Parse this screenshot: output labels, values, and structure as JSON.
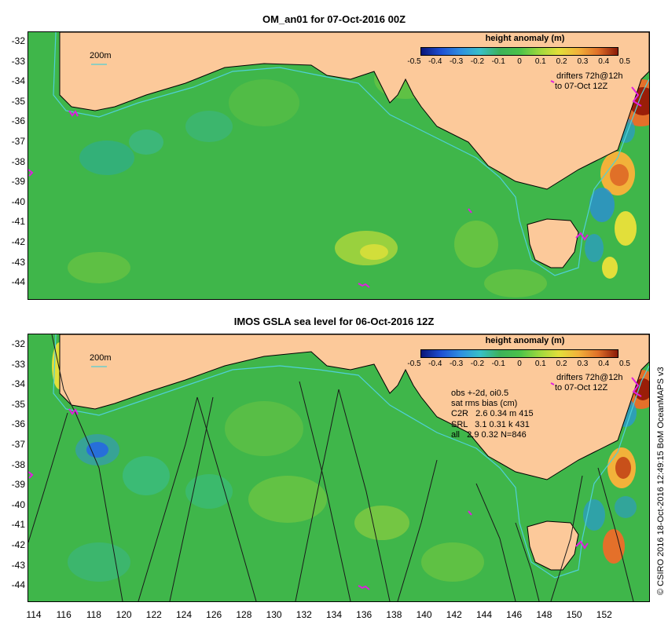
{
  "top_panel": {
    "title": "OM_an01 for 07-Oct-2016 00Z",
    "contour_label": "200m",
    "legend_title": "height anomaly (m)",
    "legend_ticks": [
      "-0.5",
      "-0.4",
      "-0.3",
      "-0.2",
      "-0.1",
      "0",
      "0.1",
      "0.2",
      "0.3",
      "0.4",
      "0.5"
    ],
    "drifters_line1": "drifters 72h@12h",
    "drifters_line2": "to 07-Oct 12Z"
  },
  "bottom_panel": {
    "title": "IMOS GSLA sea level  for 06-Oct-2016 12Z",
    "contour_label": "200m",
    "legend_title": "height anomaly (m)",
    "legend_ticks": [
      "-0.5",
      "-0.4",
      "-0.3",
      "-0.2",
      "-0.1",
      "0",
      "0.1",
      "0.2",
      "0.3",
      "0.4",
      "0.5"
    ],
    "drifters_line1": "drifters 72h@12h",
    "drifters_line2": "to 07-Oct 12Z",
    "stats": [
      "obs +-2d, oi0.5",
      "sat rms bias (cm)",
      "C2R   2.6 0.34 m 415",
      "SRL   3.1 0.31 k 431",
      "all   2.9 0.32 N=846"
    ]
  },
  "axes": {
    "y_labels": [
      "-32",
      "-33",
      "-34",
      "-35",
      "-36",
      "-37",
      "-38",
      "-39",
      "-40",
      "-41",
      "-42",
      "-43",
      "-44"
    ],
    "x_labels": [
      "114",
      "116",
      "118",
      "120",
      "122",
      "124",
      "126",
      "128",
      "130",
      "132",
      "134",
      "136",
      "138",
      "140",
      "142",
      "144",
      "146",
      "148",
      "150",
      "152"
    ]
  },
  "copyright": "© CSIRO 2016  18-Oct-2016 12:49:15 BoM OceanMAPS v3",
  "colors": {
    "land": "#fcc99a",
    "ocean_base": "#3fb64a",
    "coastline": "#000000",
    "isobath": "#4fd0d8",
    "drifter": "#e01ee0",
    "track": "#1a1a1a"
  }
}
